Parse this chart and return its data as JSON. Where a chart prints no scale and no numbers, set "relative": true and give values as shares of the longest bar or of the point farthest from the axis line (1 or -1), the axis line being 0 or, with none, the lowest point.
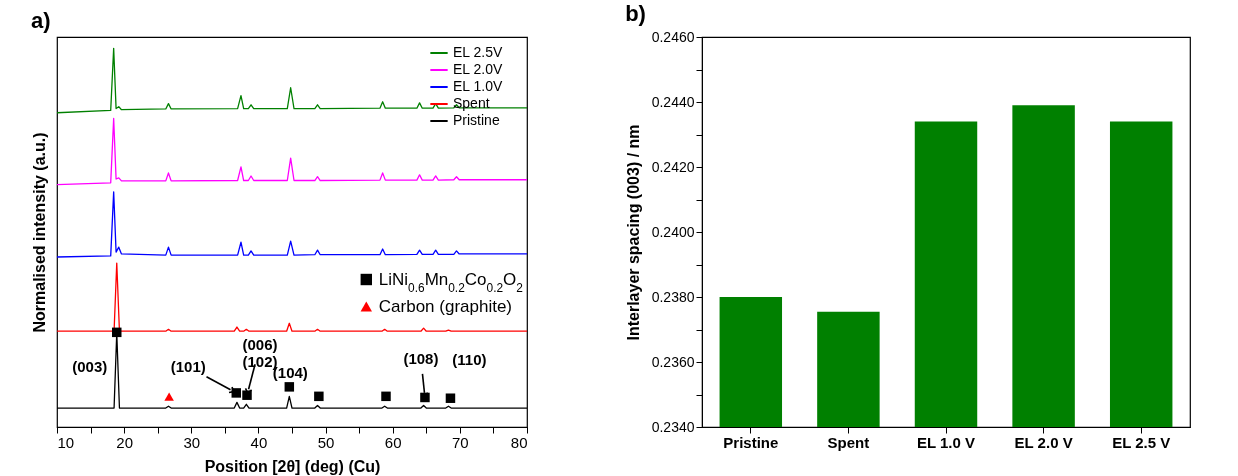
{
  "chart_data": [
    {
      "type": "line",
      "title": "a)",
      "xlabel": "Position [2θ] (deg) (Cu)",
      "ylabel": "Normalised intensity (a.u.)",
      "relative": true,
      "tick_labels": "x",
      "legend": "top right",
      "xlim": [
        10,
        80
      ],
      "xticks": [
        10,
        {
          "value": 15,
          "label": null
        },
        20,
        {
          "value": 25,
          "label": null
        },
        30,
        {
          "value": 35,
          "label": null
        },
        40,
        {
          "value": 45,
          "label": null
        },
        50,
        {
          "value": 55,
          "label": null
        },
        60,
        {
          "value": 65,
          "label": null
        },
        70,
        {
          "value": 75,
          "label": null
        },
        80
      ],
      "series": [
        {
          "name": "EL 2.5V",
          "color": "#008000",
          "x": [
            10,
            18.0,
            18.44,
            18.8,
            19.2,
            19.6,
            26.2,
            26.6,
            27.0,
            36.9,
            37.4,
            37.8,
            38.5,
            38.9,
            39.3,
            44.3,
            44.8,
            45.3,
            48.4,
            48.8,
            49.2,
            58.1,
            58.5,
            58.9,
            63.6,
            64.0,
            64.4,
            66.0,
            66.4,
            66.8,
            69.1,
            69.5,
            69.9,
            80
          ],
          "values": [
            0.83,
            0.836,
            1,
            0.841,
            0.846,
            0.838,
            0.84,
            0.854,
            0.84,
            0.841,
            0.875,
            0.841,
            0.841,
            0.851,
            0.841,
            0.841,
            0.896,
            0.841,
            0.841,
            0.851,
            0.841,
            0.842,
            0.859,
            0.842,
            0.842,
            0.856,
            0.842,
            0.842,
            0.854,
            0.842,
            0.843,
            0.851,
            0.843,
            0.843
          ]
        },
        {
          "name": "EL 2.0V",
          "color": "#ff00ff",
          "x": [
            10,
            18.0,
            18.44,
            18.8,
            19.2,
            19.6,
            26.2,
            26.6,
            27.0,
            36.9,
            37.4,
            37.8,
            38.5,
            38.9,
            39.3,
            44.3,
            44.8,
            45.3,
            48.4,
            48.8,
            49.2,
            58.1,
            58.5,
            58.9,
            63.6,
            64.0,
            64.4,
            66.0,
            66.4,
            66.8,
            69.1,
            69.5,
            69.9,
            80
          ],
          "values": [
            0.64,
            0.645,
            0.815,
            0.655,
            0.658,
            0.65,
            0.65,
            0.671,
            0.65,
            0.651,
            0.687,
            0.651,
            0.651,
            0.663,
            0.651,
            0.651,
            0.71,
            0.651,
            0.651,
            0.661,
            0.651,
            0.652,
            0.671,
            0.652,
            0.652,
            0.666,
            0.652,
            0.652,
            0.663,
            0.652,
            0.653,
            0.661,
            0.653,
            0.653
          ]
        },
        {
          "name": "EL 1.0V",
          "color": "#0000ff",
          "x": [
            10,
            18.0,
            18.44,
            18.8,
            19.2,
            19.6,
            26.2,
            26.6,
            27.0,
            36.9,
            37.4,
            37.8,
            38.5,
            38.9,
            39.3,
            44.3,
            44.8,
            45.3,
            48.4,
            48.8,
            49.2,
            58.1,
            58.5,
            58.9,
            63.6,
            64.0,
            64.4,
            66.0,
            66.4,
            66.8,
            69.1,
            69.5,
            69.9,
            80
          ],
          "values": [
            0.449,
            0.452,
            0.621,
            0.462,
            0.475,
            0.457,
            0.454,
            0.475,
            0.454,
            0.454,
            0.488,
            0.454,
            0.454,
            0.465,
            0.454,
            0.454,
            0.491,
            0.454,
            0.455,
            0.467,
            0.455,
            0.455,
            0.47,
            0.455,
            0.456,
            0.467,
            0.456,
            0.456,
            0.467,
            0.456,
            0.456,
            0.465,
            0.457,
            0.457
          ]
        },
        {
          "name": "Spent",
          "color": "#ff0000",
          "x": [
            10,
            18.5,
            18.9,
            19.3,
            26.2,
            26.6,
            27.0,
            36.4,
            36.8,
            37.2,
            37.8,
            38.2,
            38.6,
            44.2,
            44.6,
            45.0,
            48.4,
            48.8,
            49.2,
            58.4,
            58.8,
            59.2,
            64.2,
            64.6,
            65.0,
            67.9,
            68.3,
            68.7,
            80
          ],
          "values": [
            0.253,
            0.253,
            0.433,
            0.253,
            0.253,
            0.258,
            0.253,
            0.253,
            0.264,
            0.253,
            0.253,
            0.258,
            0.253,
            0.253,
            0.274,
            0.253,
            0.253,
            0.258,
            0.253,
            0.253,
            0.258,
            0.253,
            0.253,
            0.261,
            0.253,
            0.253,
            0.256,
            0.253,
            0.253
          ]
        },
        {
          "name": "Pristine",
          "color": "#000000",
          "x": [
            10,
            18.5,
            18.9,
            19.3,
            26.2,
            26.6,
            27.0,
            36.4,
            36.8,
            37.2,
            37.8,
            38.2,
            38.6,
            44.2,
            44.6,
            45.0,
            48.4,
            48.8,
            49.2,
            58.4,
            58.8,
            59.2,
            64.2,
            64.6,
            65.0,
            67.9,
            68.3,
            68.7,
            80
          ],
          "values": [
            0.05,
            0.05,
            0.248,
            0.05,
            0.05,
            0.055,
            0.05,
            0.05,
            0.065,
            0.05,
            0.05,
            0.06,
            0.05,
            0.05,
            0.081,
            0.05,
            0.05,
            0.057,
            0.05,
            0.05,
            0.055,
            0.05,
            0.05,
            0.057,
            0.05,
            0.05,
            0.055,
            0.05,
            0.05
          ]
        },
        {
          "name": "LiNi$_{0.6}$Mn$_{0.2}$Co$_{0.2}$O$_{2}$",
          "type": "scatter",
          "marker": "square",
          "color": "#000000",
          "x": [
            18.9,
            36.7,
            38.3,
            44.6,
            49.0,
            59.0,
            64.8,
            68.6
          ],
          "values": [
            0.25,
            0.09,
            0.084,
            0.106,
            0.081,
            0.081,
            0.078,
            0.076
          ]
        },
        {
          "name": "Carbon (graphite)",
          "type": "scatter",
          "marker": "triangle",
          "color": "#ff0000",
          "x": [
            26.7
          ],
          "values": [
            0.08
          ]
        }
      ],
      "annotations": [
        {
          "text": "(003)",
          "x": 18.9,
          "y": 0.25
        },
        {
          "text": "(101)",
          "x": 36.7,
          "y": 0.09
        },
        {
          "text": "(006)\n(102)",
          "x": 38.3,
          "y": 0.084
        },
        {
          "text": "(104)",
          "x": 44.6,
          "y": 0.106
        },
        {
          "text": "(108)",
          "x": 64.8,
          "y": 0.078
        },
        {
          "text": "(110)",
          "x": 68.6,
          "y": 0.076
        }
      ]
    },
    {
      "type": "bar",
      "title": "b)",
      "ylabel": "Interlayer spacing (003) / nm",
      "color": "#008000",
      "categories": [
        "Pristine",
        "Spent",
        "EL 1.0 V",
        "EL 2.0 V",
        "EL 2.5 V"
      ],
      "values": [
        0.238,
        0.23755,
        0.2434,
        0.2439,
        0.2434
      ],
      "ylim": [
        0.234,
        0.246
      ],
      "yticks": [
        {
          "value": 0.234,
          "label": "0.2340"
        },
        {
          "value": 0.235,
          "label": null
        },
        {
          "value": 0.236,
          "label": "0.2360"
        },
        {
          "value": 0.237,
          "label": null
        },
        {
          "value": 0.238,
          "label": "0.2380"
        },
        {
          "value": 0.239,
          "label": null
        },
        {
          "value": 0.24,
          "label": "0.2400"
        },
        {
          "value": 0.241,
          "label": null
        },
        {
          "value": 0.242,
          "label": "0.2420"
        },
        {
          "value": 0.243,
          "label": null
        },
        {
          "value": 0.244,
          "label": "0.2440"
        },
        {
          "value": 0.245,
          "label": null
        },
        {
          "value": 0.246,
          "label": "0.2460"
        }
      ]
    }
  ]
}
